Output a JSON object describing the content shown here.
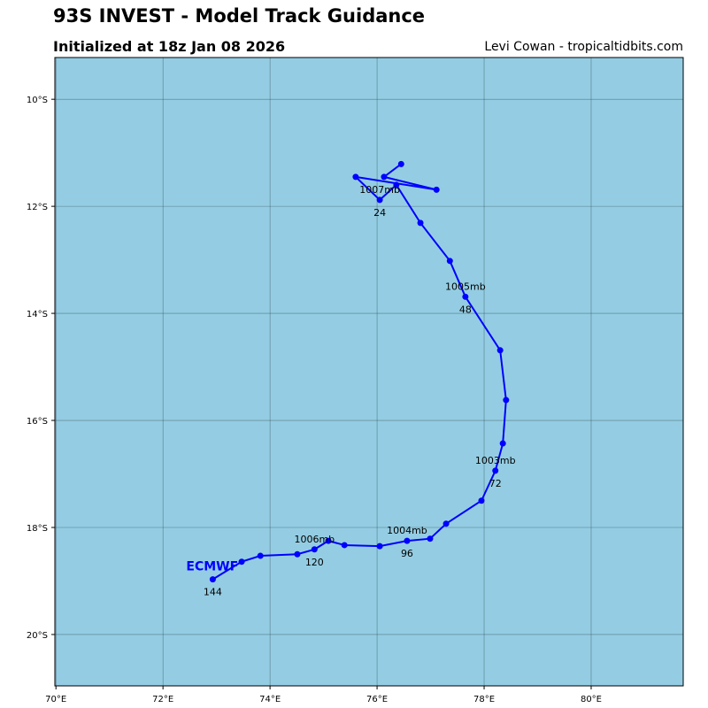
{
  "header": {
    "title": "93S INVEST - Model Track Guidance",
    "subtitle": "Initialized at 18z Jan 08 2026",
    "credit": "Levi Cowan - tropicaltidbits.com"
  },
  "chart_data": {
    "type": "line",
    "title": "93S INVEST - Model Track Guidance",
    "xlim": [
      69.98,
      81.72
    ],
    "ylim": [
      -20.96,
      -9.22
    ],
    "grid": true,
    "background_color": "#94cde3",
    "xticks": [
      70,
      72,
      74,
      76,
      78,
      80
    ],
    "xtick_labels": [
      "70°E",
      "72°E",
      "74°E",
      "76°E",
      "78°E",
      "80°E"
    ],
    "yticks": [
      -10,
      -12,
      -14,
      -16,
      -18,
      -20
    ],
    "ytick_labels": [
      "10°S",
      "12°S",
      "14°S",
      "16°S",
      "18°S",
      "20°S"
    ],
    "series": [
      {
        "name": "ECMWF",
        "color": "#0000ff",
        "hours": [
          0,
          6,
          12,
          18,
          24,
          30,
          36,
          42,
          48,
          54,
          60,
          66,
          72,
          78,
          84,
          90,
          96,
          102,
          108,
          114,
          120,
          126,
          132,
          138,
          144
        ],
        "lon": [
          76.45,
          76.13,
          77.11,
          75.6,
          76.05,
          76.36,
          76.81,
          77.36,
          77.65,
          78.3,
          78.41,
          78.35,
          78.21,
          77.95,
          77.29,
          76.99,
          76.56,
          76.05,
          75.39,
          75.09,
          74.83,
          74.51,
          73.82,
          73.47,
          72.93
        ],
        "lat": [
          -11.21,
          -11.45,
          -11.69,
          -11.45,
          -11.88,
          -11.6,
          -12.31,
          -13.02,
          -13.69,
          -14.69,
          -15.62,
          -16.43,
          -16.94,
          -17.5,
          -17.93,
          -18.21,
          -18.25,
          -18.35,
          -18.33,
          -18.25,
          -18.41,
          -18.5,
          -18.53,
          -18.64,
          -18.97
        ],
        "annotations": [
          {
            "hour": 24,
            "label": "24",
            "pressure": "1007mb"
          },
          {
            "hour": 48,
            "label": "48",
            "pressure": "1005mb"
          },
          {
            "hour": 72,
            "label": "72",
            "pressure": "1003mb"
          },
          {
            "hour": 96,
            "label": "96",
            "pressure": "1004mb"
          },
          {
            "hour": 120,
            "label": "120",
            "pressure": "1006mb"
          },
          {
            "hour": 144,
            "label": "144",
            "pressure": ""
          }
        ]
      }
    ]
  }
}
